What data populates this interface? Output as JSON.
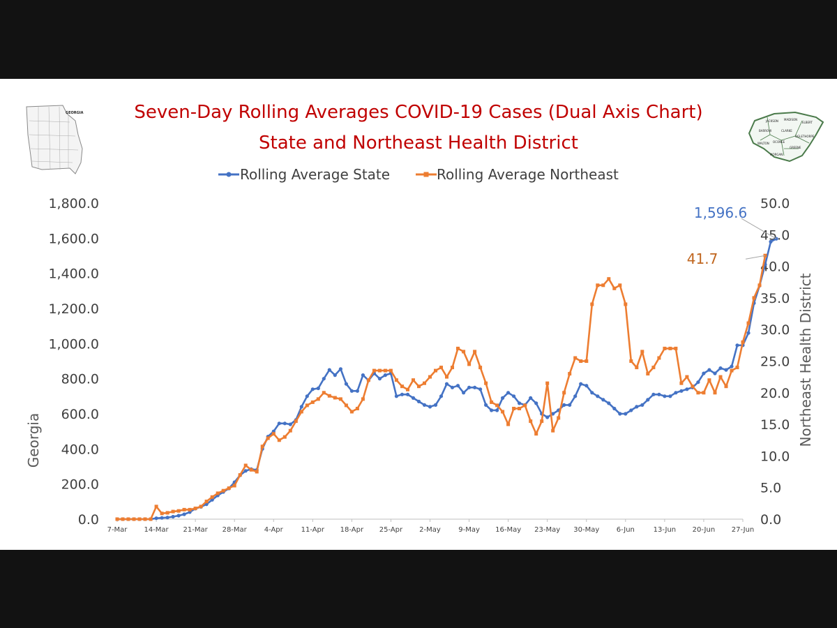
{
  "chart_data": {
    "type": "line",
    "title": "Seven-Day Rolling Averages COVID-19 Cases (Dual Axis Chart)",
    "subtitle": "State and Northeast Health District",
    "legend_position": "top-center",
    "grid": false,
    "x_tick_labels": [
      "7-Mar",
      "14-Mar",
      "21-Mar",
      "28-Mar",
      "4-Apr",
      "11-Apr",
      "18-Apr",
      "25-Apr",
      "2-May",
      "9-May",
      "16-May",
      "23-May",
      "30-May",
      "6-Jun",
      "13-Jun",
      "20-Jun",
      "27-Jun"
    ],
    "x_range_days": [
      0,
      112
    ],
    "y_left": {
      "label": "Georgia",
      "range": [
        0,
        1800
      ],
      "tick_labels": [
        "0.0",
        "200.0",
        "400.0",
        "600.0",
        "800.0",
        "1,000.0",
        "1,200.0",
        "1,400.0",
        "1,600.0",
        "1,800.0"
      ]
    },
    "y_right": {
      "label": "Northeast Health District",
      "range": [
        0,
        50
      ],
      "tick_labels": [
        "0.0",
        "5.0",
        "10.0",
        "15.0",
        "20.0",
        "25.0",
        "30.0",
        "35.0",
        "40.0",
        "45.0",
        "50.0"
      ]
    },
    "series": [
      {
        "name": "Rolling Average State",
        "axis": "left",
        "color": "#4472c4",
        "marker": "circle",
        "start_date": "7-Mar",
        "values": [
          0,
          0,
          0,
          0,
          0,
          0,
          0,
          5,
          7,
          9,
          14,
          20,
          28,
          40,
          60,
          70,
          85,
          110,
          135,
          155,
          175,
          210,
          250,
          275,
          285,
          280,
          400,
          470,
          500,
          545,
          545,
          540,
          565,
          640,
          700,
          740,
          745,
          800,
          850,
          820,
          855,
          770,
          730,
          730,
          820,
          790,
          830,
          800,
          820,
          830,
          700,
          710,
          710,
          690,
          670,
          650,
          640,
          650,
          700,
          770,
          750,
          760,
          720,
          750,
          750,
          740,
          650,
          620,
          620,
          690,
          720,
          700,
          660,
          650,
          690,
          660,
          600,
          580,
          600,
          620,
          650,
          650,
          700,
          770,
          760,
          720,
          700,
          680,
          660,
          630,
          600,
          600,
          620,
          640,
          650,
          680,
          710,
          710,
          700,
          700,
          720,
          730,
          740,
          750,
          780,
          830,
          850,
          830,
          860,
          850,
          870,
          990,
          990,
          1060,
          1230,
          1330,
          1450,
          1580,
          1596.6
        ]
      },
      {
        "name": "Rolling Average Northeast",
        "axis": "right",
        "color": "#ed7d31",
        "marker": "square",
        "start_date": "7-Mar",
        "values": [
          0,
          0,
          0,
          0,
          0,
          0,
          0,
          2,
          0.9,
          1.0,
          1.2,
          1.3,
          1.5,
          1.5,
          1.7,
          2.0,
          2.8,
          3.5,
          4.1,
          4.5,
          4.9,
          5.3,
          7.0,
          8.5,
          7.8,
          7.5,
          11.5,
          12.8,
          13.5,
          12.5,
          13.0,
          14.0,
          15.5,
          17.0,
          18.0,
          18.5,
          19.0,
          20.0,
          19.5,
          19.2,
          19.0,
          18.0,
          17.0,
          17.5,
          19.0,
          22.0,
          23.5,
          23.5,
          23.5,
          23.5,
          22.0,
          21.0,
          20.5,
          22.0,
          21.0,
          21.5,
          22.5,
          23.5,
          24.0,
          22.5,
          24.0,
          27.0,
          26.5,
          24.5,
          26.5,
          24.0,
          21.5,
          18.5,
          18.0,
          17.0,
          15.0,
          17.5,
          17.5,
          18.0,
          15.5,
          13.5,
          15.5,
          21.5,
          14.0,
          16.0,
          20.0,
          23.0,
          25.5,
          25.0,
          25.0,
          34.0,
          37.0,
          37.0,
          38.0,
          36.5,
          37.0,
          34.0,
          25.0,
          24.0,
          26.5,
          23.0,
          24.0,
          25.5,
          27.0,
          27.0,
          27.0,
          21.5,
          22.5,
          21.0,
          20.0,
          20.0,
          22.0,
          20.0,
          22.5,
          21.0,
          23.5,
          24.0,
          28.0,
          31.0,
          35.0,
          37.0,
          41.7
        ]
      }
    ],
    "annotations": [
      {
        "text": "1,596.6",
        "series": "Rolling Average State",
        "color": "#4472c4"
      },
      {
        "text": "41.7",
        "series": "Rolling Average Northeast",
        "color": "#c0661f"
      }
    ]
  },
  "images": {
    "left_map": "georgia-state-counties-map",
    "left_map_caption": "GEORGIA",
    "right_map": "northeast-health-district-map",
    "right_map_counties": [
      "JACKSON",
      "MADISON",
      "ELBERT",
      "BARROW",
      "CLARKE",
      "OCONEE",
      "OGLETHORPE",
      "WALTON",
      "MORGAN",
      "GREENE"
    ]
  }
}
